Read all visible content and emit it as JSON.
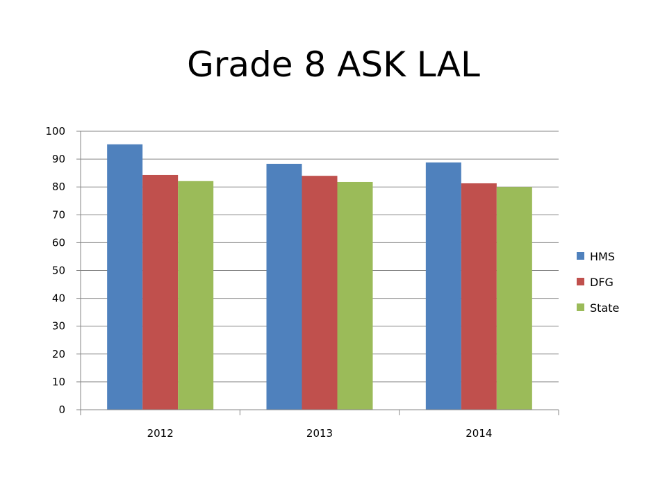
{
  "slide": {
    "title": "Grade 8 ASK LAL"
  },
  "chart_data": {
    "type": "bar",
    "title": "",
    "xlabel": "",
    "ylabel": "",
    "categories": [
      "2012",
      "2013",
      "2014"
    ],
    "series": [
      {
        "name": "HMS",
        "color": "#4F81BD",
        "values": [
          95.3,
          88.3,
          88.8
        ]
      },
      {
        "name": "DFG",
        "color": "#C0504D",
        "values": [
          84.3,
          84.0,
          81.3
        ]
      },
      {
        "name": "State",
        "color": "#9BBB59",
        "values": [
          82.1,
          81.8,
          80.0
        ]
      }
    ],
    "ylim": [
      0,
      100
    ],
    "yticks": [
      0,
      10,
      20,
      30,
      40,
      50,
      60,
      70,
      80,
      90,
      100
    ],
    "grid": true,
    "legend": "right"
  }
}
